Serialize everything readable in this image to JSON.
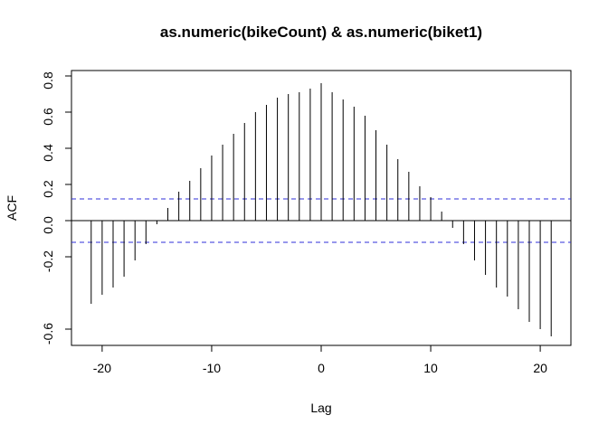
{
  "chart_data": {
    "type": "bar",
    "title": "as.numeric(bikeCount) & as.numeric(biket1)",
    "xlabel": "Lag",
    "ylabel": "ACF",
    "xlim": [
      -22.8,
      22.8
    ],
    "ylim": [
      -0.69,
      0.83
    ],
    "x_ticks": [
      -20,
      -10,
      0,
      10,
      20
    ],
    "y_ticks": [
      -0.6,
      -0.2,
      0.0,
      0.2,
      0.4,
      0.6,
      0.8
    ],
    "y_tick_labels": [
      "-0.6",
      "-0.2",
      "0.0",
      "0.2",
      "0.4",
      "0.6",
      "0.8"
    ],
    "grid": false,
    "lags": [
      -21,
      -20,
      -19,
      -18,
      -17,
      -16,
      -15,
      -14,
      -13,
      -12,
      -11,
      -10,
      -9,
      -8,
      -7,
      -6,
      -5,
      -4,
      -3,
      -2,
      -1,
      0,
      1,
      2,
      3,
      4,
      5,
      6,
      7,
      8,
      9,
      10,
      11,
      12,
      13,
      14,
      15,
      16,
      17,
      18,
      19,
      20,
      21
    ],
    "values": [
      -0.46,
      -0.41,
      -0.37,
      -0.31,
      -0.22,
      -0.13,
      -0.02,
      0.07,
      0.16,
      0.22,
      0.29,
      0.36,
      0.42,
      0.48,
      0.54,
      0.6,
      0.64,
      0.68,
      0.7,
      0.71,
      0.73,
      0.76,
      0.71,
      0.67,
      0.63,
      0.58,
      0.5,
      0.42,
      0.34,
      0.27,
      0.19,
      0.13,
      0.05,
      -0.04,
      -0.13,
      -0.22,
      -0.3,
      -0.37,
      -0.42,
      -0.49,
      -0.56,
      -0.6,
      -0.64
    ],
    "confidence_bound": 0.12,
    "colors": {
      "bars": "#000000",
      "confidence_lines": "#2f2fd8",
      "zero_line": "#000000",
      "frame": "#000000"
    }
  }
}
